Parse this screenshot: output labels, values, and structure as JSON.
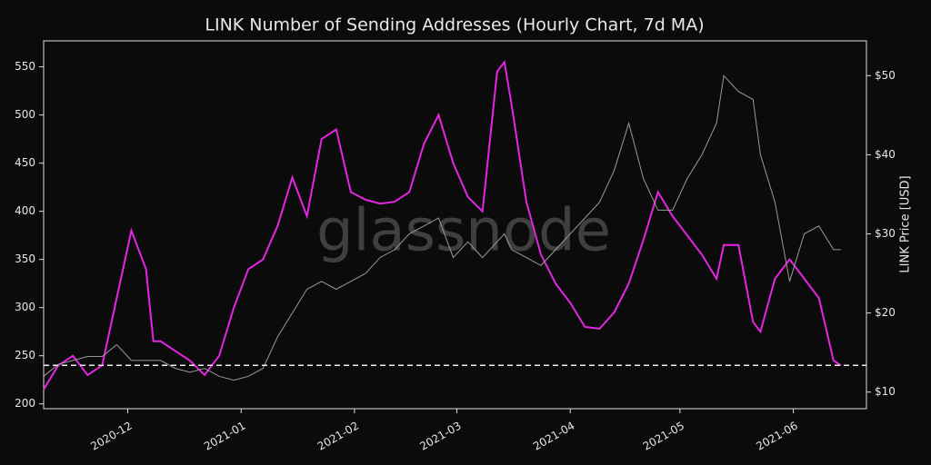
{
  "chart_data": {
    "type": "line",
    "title": "LINK Number of Sending Addresses (Hourly Chart, 7d MA)",
    "y2label": "LINK Price [USD]",
    "watermark": "glassnode",
    "x": [
      0,
      4,
      8,
      12,
      16,
      20,
      24,
      28,
      30,
      32,
      36,
      40,
      44,
      48,
      52,
      56,
      60,
      64,
      68,
      72,
      76,
      80,
      84,
      88,
      92,
      96,
      100,
      104,
      108,
      112,
      116,
      120,
      124,
      126,
      128,
      132,
      136,
      140,
      144,
      148,
      152,
      156,
      160,
      164,
      168,
      172,
      176,
      180,
      184,
      186,
      190,
      194,
      196,
      200,
      204,
      208,
      212,
      216,
      218
    ],
    "xlim": [
      0,
      225
    ],
    "xticks": [
      {
        "value": 23,
        "label": "2020-12"
      },
      {
        "value": 54,
        "label": "2021-01"
      },
      {
        "value": 85,
        "label": "2021-02"
      },
      {
        "value": 113,
        "label": "2021-03"
      },
      {
        "value": 144,
        "label": "2021-04"
      },
      {
        "value": 174,
        "label": "2021-05"
      },
      {
        "value": 205,
        "label": "2021-06"
      }
    ],
    "ylim": [
      195,
      577
    ],
    "yticks": [
      200,
      250,
      300,
      350,
      400,
      450,
      500,
      550
    ],
    "y2lim": [
      7.9,
      54.4
    ],
    "y2ticks": [
      {
        "value": 10,
        "label": "$10"
      },
      {
        "value": 20,
        "label": "$20"
      },
      {
        "value": 30,
        "label": "$30"
      },
      {
        "value": 40,
        "label": "$40"
      },
      {
        "value": 50,
        "label": "$50"
      }
    ],
    "hline": 240,
    "series": [
      {
        "name": "Sending Addresses",
        "color": "#e524e5",
        "values": [
          215,
          240,
          250,
          230,
          240,
          310,
          380,
          340,
          265,
          265,
          255,
          245,
          230,
          250,
          300,
          340,
          350,
          385,
          435,
          395,
          475,
          485,
          420,
          412,
          408,
          410,
          420,
          470,
          500,
          450,
          415,
          400,
          545,
          555,
          510,
          410,
          355,
          325,
          305,
          280,
          278,
          295,
          325,
          370,
          420,
          395,
          375,
          355,
          330,
          365,
          365,
          285,
          275,
          330,
          350,
          330,
          310,
          245,
          240
        ]
      },
      {
        "name": "Price",
        "color": "#9a9a9a",
        "axis": "y2",
        "values": [
          12,
          13.5,
          14,
          14.5,
          14.5,
          16,
          14,
          14,
          14,
          14,
          13,
          12.5,
          13,
          12,
          11.5,
          12,
          13,
          17,
          20,
          23,
          24,
          23,
          24,
          25,
          27,
          28,
          30,
          31,
          32,
          27,
          29,
          27,
          29,
          30,
          28,
          27,
          26,
          28,
          30,
          32,
          34,
          38,
          44,
          37,
          33,
          33,
          37,
          40,
          44,
          50,
          48,
          47,
          40,
          34,
          24,
          30,
          31,
          28,
          28
        ]
      }
    ]
  }
}
